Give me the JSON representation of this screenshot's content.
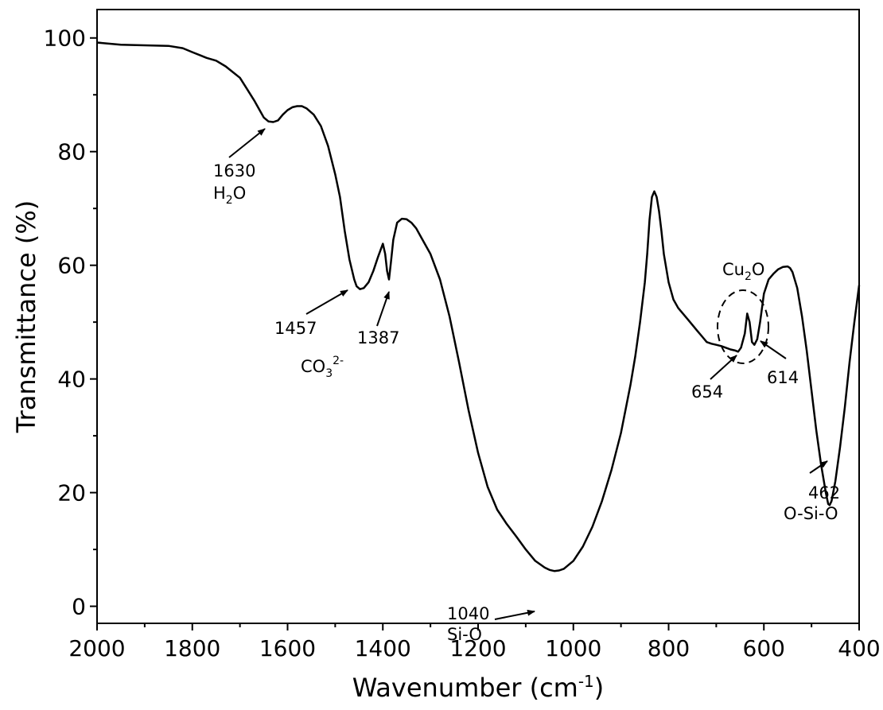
{
  "chart_data": {
    "type": "line",
    "xlabel": "Wavenumber (cm",
    "xlabel_sup": "-1",
    "xlabel_close": ")",
    "ylabel": "Transmittance (%)",
    "xlim": [
      2000,
      400
    ],
    "ylim": [
      -3,
      105
    ],
    "x_reversed": true,
    "grid": false,
    "x_ticks": [
      2000,
      1800,
      1600,
      1400,
      1200,
      1000,
      800,
      600,
      400
    ],
    "x_tick_labels": [
      "2000",
      "1800",
      "1600",
      "1400",
      "1200",
      "1000",
      "800",
      "600",
      "400"
    ],
    "y_ticks": [
      0,
      20,
      40,
      60,
      80,
      100
    ],
    "y_tick_labels": [
      "0",
      "20",
      "40",
      "60",
      "80",
      "100"
    ],
    "series": [
      {
        "color": "#000000",
        "x": [
          2000,
          1950,
          1900,
          1850,
          1820,
          1800,
          1770,
          1750,
          1730,
          1715,
          1700,
          1685,
          1670,
          1660,
          1650,
          1640,
          1630,
          1620,
          1610,
          1600,
          1590,
          1580,
          1570,
          1560,
          1545,
          1530,
          1515,
          1500,
          1490,
          1480,
          1470,
          1460,
          1455,
          1448,
          1440,
          1430,
          1420,
          1410,
          1400,
          1395,
          1391,
          1387,
          1383,
          1378,
          1370,
          1360,
          1350,
          1340,
          1330,
          1320,
          1300,
          1280,
          1260,
          1240,
          1220,
          1200,
          1180,
          1160,
          1140,
          1120,
          1100,
          1080,
          1060,
          1050,
          1040,
          1030,
          1020,
          1000,
          980,
          960,
          940,
          920,
          900,
          880,
          870,
          860,
          850,
          845,
          840,
          835,
          830,
          825,
          820,
          815,
          810,
          800,
          790,
          780,
          770,
          760,
          750,
          740,
          730,
          720,
          710,
          700,
          690,
          680,
          670,
          660,
          654,
          648,
          640,
          635,
          630,
          625,
          620,
          614,
          608,
          600,
          590,
          580,
          570,
          560,
          550,
          545,
          540,
          530,
          520,
          510,
          500,
          490,
          480,
          470,
          465,
          462,
          458,
          450,
          440,
          430,
          420,
          410,
          400
        ],
        "y": [
          99.2,
          98.8,
          98.7,
          98.6,
          98.2,
          97.5,
          96.5,
          96.0,
          95.0,
          94.0,
          93.0,
          91.0,
          89.0,
          87.5,
          86.0,
          85.3,
          85.2,
          85.5,
          86.5,
          87.3,
          87.8,
          88.0,
          88.0,
          87.6,
          86.5,
          84.5,
          81.0,
          76.0,
          72.0,
          66.0,
          61.0,
          57.5,
          56.3,
          55.8,
          56.0,
          57.0,
          59.0,
          61.5,
          63.8,
          62.0,
          59.0,
          57.5,
          60.5,
          64.5,
          67.5,
          68.2,
          68.1,
          67.5,
          66.5,
          65.0,
          62.0,
          57.5,
          51.0,
          43.0,
          34.5,
          27.0,
          21.0,
          17.0,
          14.5,
          12.3,
          10.0,
          8.0,
          6.8,
          6.4,
          6.2,
          6.3,
          6.6,
          8.0,
          10.5,
          14.0,
          18.5,
          24.0,
          30.5,
          39.0,
          44.0,
          50.0,
          57.0,
          62.0,
          68.0,
          72.0,
          73.0,
          72.0,
          69.5,
          66.0,
          62.0,
          57.0,
          54.0,
          52.5,
          51.5,
          50.5,
          49.5,
          48.5,
          47.5,
          46.5,
          46.2,
          46.0,
          45.8,
          45.5,
          45.2,
          45.0,
          44.8,
          45.5,
          48.0,
          51.5,
          50.0,
          46.5,
          46.0,
          47.0,
          50.0,
          55.0,
          57.5,
          58.5,
          59.3,
          59.7,
          59.8,
          59.5,
          58.8,
          56.0,
          51.0,
          45.0,
          38.0,
          31.0,
          25.0,
          20.0,
          18.0,
          17.8,
          18.5,
          22.0,
          28.0,
          35.0,
          43.0,
          50.0,
          56.5
        ]
      }
    ],
    "annotations": [
      {
        "label": "1630",
        "sub": "H",
        "sub_index": "2",
        "sub_tail": "O"
      },
      {
        "label": "1457"
      },
      {
        "label": "1387"
      },
      {
        "group_label": "CO",
        "group_sub": "3",
        "group_sup": "2-"
      },
      {
        "label": "1040",
        "line2": "Si-O"
      },
      {
        "label": "Cu",
        "label_sub": "2",
        "label_tail": "O"
      },
      {
        "label": "654"
      },
      {
        "label": "614"
      },
      {
        "label": "462",
        "line2": "O-Si-O"
      }
    ]
  }
}
